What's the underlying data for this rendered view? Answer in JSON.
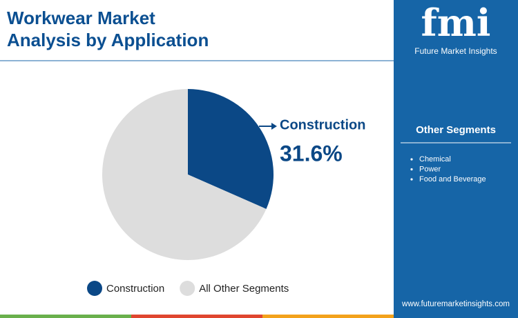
{
  "header": {
    "title": [
      "Workwear Market",
      "Analysis by Application"
    ]
  },
  "chart_data": {
    "type": "pie",
    "categories": [
      "Construction",
      "All Other Segments"
    ],
    "values": [
      31.6,
      68.4
    ],
    "value_labels": [
      "31.6%",
      null
    ],
    "colors": [
      "#0b4886",
      "#dddddd"
    ]
  },
  "sidebar": {
    "logo": "fmi",
    "logo_subtitle": "Future Market Insights",
    "heading": "Other Segments",
    "items": [
      "Chemical",
      "Power",
      "Food and Beverage"
    ],
    "website": "www.futuremarketinsights.com"
  }
}
